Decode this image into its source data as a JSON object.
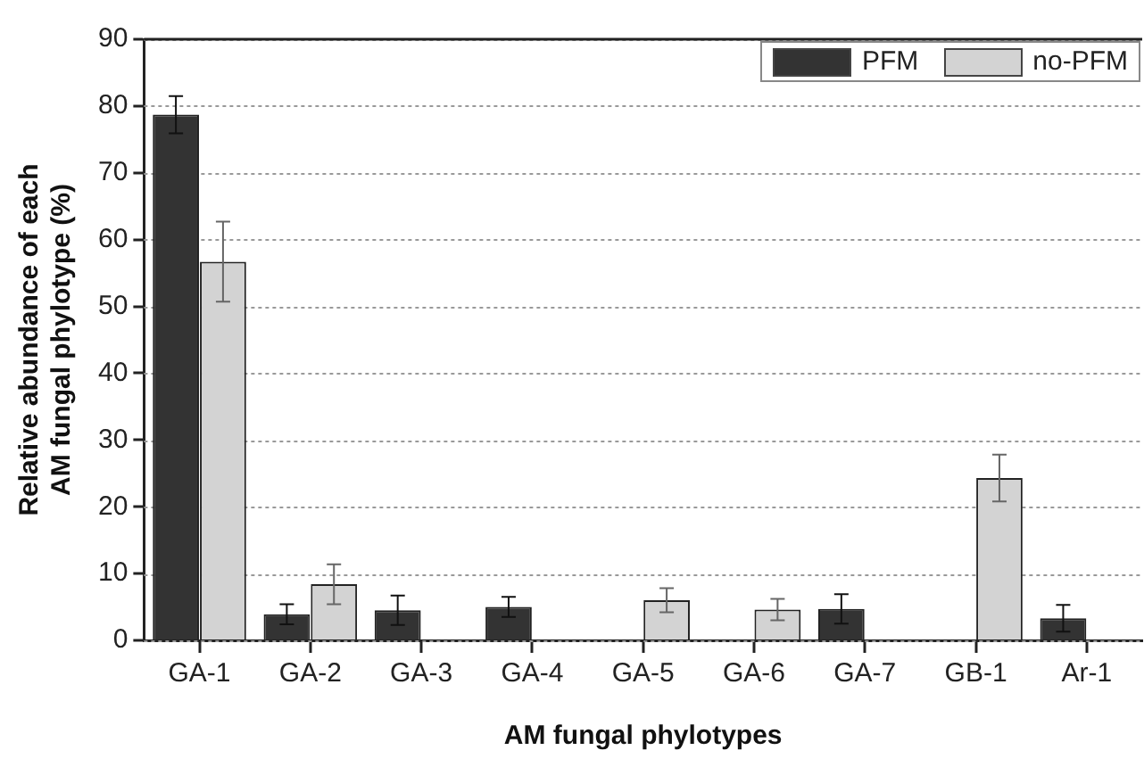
{
  "chart_data": {
    "type": "bar",
    "xlabel": "AM fungal phylotypes",
    "ylabel": "Relative abundance of each\nAM fungal phylotype (%)",
    "categories": [
      "GA-1",
      "GA-2",
      "GA-3",
      "GA-4",
      "GA-5",
      "GA-6",
      "GA-7",
      "GB-1",
      "Ar-1"
    ],
    "series": [
      {
        "name": "PFM",
        "color": "#333333",
        "values": [
          78.7,
          3.9,
          4.5,
          5.0,
          null,
          null,
          4.7,
          null,
          3.3
        ],
        "errors": [
          2.8,
          1.5,
          2.2,
          1.5,
          null,
          null,
          2.2,
          null,
          2.0
        ]
      },
      {
        "name": "no-PFM",
        "color": "#d3d3d3",
        "values": [
          56.7,
          8.4,
          null,
          null,
          6.0,
          4.6,
          null,
          24.3,
          null
        ],
        "errors": [
          6.0,
          3.0,
          null,
          null,
          1.8,
          1.6,
          null,
          3.5,
          null
        ]
      }
    ],
    "ylim": [
      0,
      90
    ],
    "yticks": [
      0,
      10,
      20,
      30,
      40,
      50,
      60,
      70,
      80,
      90
    ],
    "grid": "y",
    "legend": "top right"
  }
}
